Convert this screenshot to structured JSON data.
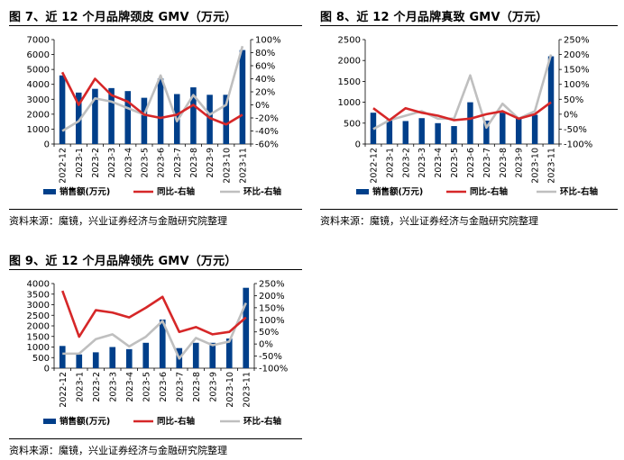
{
  "figures": [
    {
      "title": "图 7、近 12 个月品牌颈皮 GMV（万元）",
      "source": "资料来源：魔镜，兴业证券经济与金融研究院整理"
    },
    {
      "title": "图 8、近 12 个月品牌真致 GMV（万元）",
      "source": "资料来源：魔镜，兴业证券经济与金融研究院整理"
    },
    {
      "title": "图 9、近 12 个月品牌领先 GMV（万元）",
      "source": "资料来源：魔镜，兴业证券经济与金融研究院整理"
    }
  ],
  "colors": {
    "bar": "#003f8a",
    "yoy": "#d62728",
    "mom": "#bfbfbf"
  },
  "chart_data": [
    {
      "type": "bar",
      "categories": [
        "2022-12",
        "2023-1",
        "2023-2",
        "2023-3",
        "2023-4",
        "2023-5",
        "2023-6",
        "2023-7",
        "2023-8",
        "2023-9",
        "2023-10",
        "2023-11"
      ],
      "ylim": [
        0,
        7000
      ],
      "y_ticks": [
        0,
        1000,
        2000,
        3000,
        4000,
        5000,
        6000,
        7000
      ],
      "y2lim": [
        -60,
        100
      ],
      "y2_ticks": [
        "-60%",
        "-40%",
        "-20%",
        "0%",
        "20%",
        "40%",
        "60%",
        "80%",
        "100%"
      ],
      "y2_tick_values": [
        -60,
        -40,
        -20,
        0,
        20,
        40,
        60,
        80,
        100
      ],
      "series": [
        {
          "name": "销售额(万元)",
          "axis": "left",
          "kind": "bar",
          "values": [
            4600,
            3450,
            3700,
            3750,
            3550,
            3100,
            4400,
            3350,
            3800,
            3300,
            3300,
            6300
          ]
        },
        {
          "name": "同比-右轴",
          "axis": "right",
          "kind": "line",
          "values": [
            50,
            0,
            40,
            15,
            5,
            -15,
            -20,
            -15,
            0,
            -20,
            -30,
            -15
          ]
        },
        {
          "name": "环比-右轴",
          "axis": "right",
          "kind": "line",
          "values": [
            -40,
            -25,
            10,
            5,
            -5,
            -15,
            45,
            -25,
            15,
            -15,
            0,
            90
          ]
        }
      ],
      "legend_position": "bottom"
    },
    {
      "type": "bar",
      "categories": [
        "2022-12",
        "2023-1",
        "2023-2",
        "2023-3",
        "2023-4",
        "2023-5",
        "2023-6",
        "2023-7",
        "2023-8",
        "2023-9",
        "2023-10",
        "2023-11"
      ],
      "ylim": [
        0,
        2500
      ],
      "y_ticks": [
        0,
        500,
        1000,
        1500,
        2000,
        2500
      ],
      "y2lim": [
        -100,
        250
      ],
      "y2_ticks": [
        "-100%",
        "-50%",
        "0%",
        "50%",
        "100%",
        "150%",
        "200%",
        "250%"
      ],
      "y2_tick_values": [
        -100,
        -50,
        0,
        50,
        100,
        150,
        200,
        250
      ],
      "series": [
        {
          "name": "销售额(万元)",
          "axis": "left",
          "kind": "bar",
          "values": [
            750,
            580,
            550,
            620,
            500,
            430,
            1000,
            560,
            750,
            630,
            700,
            2100
          ]
        },
        {
          "name": "同比-右轴",
          "axis": "right",
          "kind": "line",
          "values": [
            20,
            -20,
            20,
            5,
            -5,
            -20,
            -15,
            0,
            10,
            -15,
            0,
            40
          ]
        },
        {
          "name": "环比-右轴",
          "axis": "right",
          "kind": "line",
          "values": [
            -50,
            -20,
            -5,
            10,
            -15,
            -15,
            130,
            -45,
            35,
            -15,
            10,
            200
          ]
        }
      ],
      "legend_position": "bottom"
    },
    {
      "type": "bar",
      "categories": [
        "2022-12",
        "2023-1",
        "2023-2",
        "2023-3",
        "2023-4",
        "2023-5",
        "2023-6",
        "2023-7",
        "2023-8",
        "2023-9",
        "2023-10",
        "2023-11"
      ],
      "ylim": [
        0,
        4000
      ],
      "y_ticks": [
        0,
        500,
        1000,
        1500,
        2000,
        2500,
        3000,
        3500,
        4000
      ],
      "y2lim": [
        -100,
        250
      ],
      "y2_ticks": [
        "-100%",
        "-50%",
        "0%",
        "50%",
        "100%",
        "150%",
        "200%",
        "250%"
      ],
      "y2_tick_values": [
        -100,
        -50,
        0,
        50,
        100,
        150,
        200,
        250
      ],
      "series": [
        {
          "name": "销售额(万元)",
          "axis": "left",
          "kind": "bar",
          "values": [
            1050,
            650,
            750,
            1000,
            900,
            1200,
            2300,
            950,
            1200,
            1200,
            1400,
            3800
          ]
        },
        {
          "name": "同比-右轴",
          "axis": "right",
          "kind": "line",
          "values": [
            220,
            30,
            140,
            130,
            110,
            150,
            195,
            50,
            70,
            40,
            50,
            110
          ]
        },
        {
          "name": "环比-右轴",
          "axis": "right",
          "kind": "line",
          "values": [
            -40,
            -40,
            20,
            40,
            -10,
            30,
            95,
            -60,
            25,
            -5,
            10,
            170
          ]
        }
      ],
      "legend_position": "bottom"
    }
  ]
}
